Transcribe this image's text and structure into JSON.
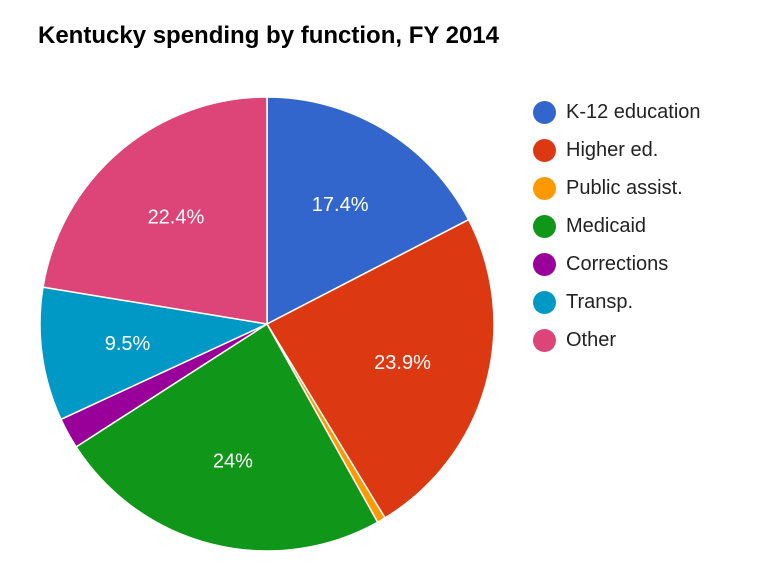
{
  "chart_data": {
    "type": "pie",
    "title": "Kentucky spending by function, FY 2014",
    "legend_position": "right",
    "slices": [
      {
        "label": "K-12 education",
        "value": 17.4,
        "display": "17.4%",
        "color": "#3366cc"
      },
      {
        "label": "Higher ed.",
        "value": 23.9,
        "display": "23.9%",
        "color": "#dc3912"
      },
      {
        "label": "Public assist.",
        "value": 0.6,
        "display": "",
        "color": "#ff9900"
      },
      {
        "label": "Medicaid",
        "value": 24,
        "display": "24%",
        "color": "#109618"
      },
      {
        "label": "Corrections",
        "value": 2.2,
        "display": "",
        "color": "#990099"
      },
      {
        "label": "Transp.",
        "value": 9.5,
        "display": "9.5%",
        "color": "#0099c6"
      },
      {
        "label": "Other",
        "value": 22.4,
        "display": "22.4%",
        "color": "#dd4477"
      }
    ]
  }
}
